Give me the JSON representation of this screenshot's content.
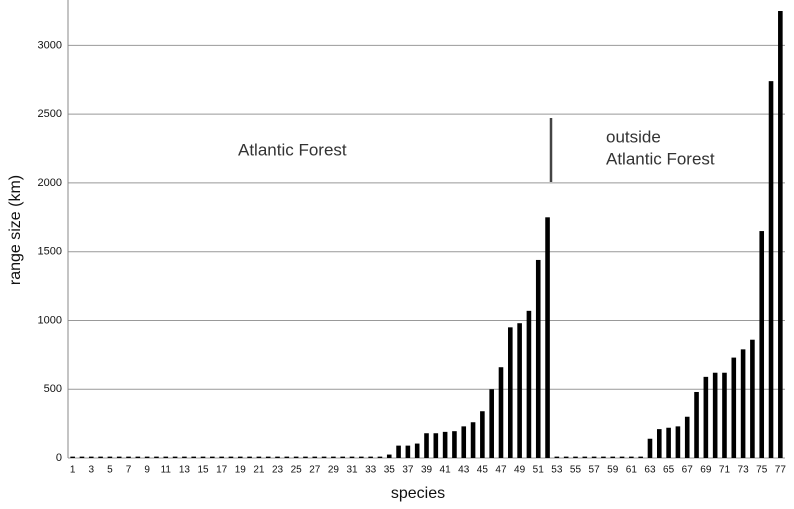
{
  "chart_data": {
    "type": "bar",
    "x_label": "species",
    "y_label": "range size (km)",
    "annotations": [
      {
        "text": "Atlantic Forest"
      },
      {
        "lines": [
          "outside",
          "Atlantic Forest"
        ]
      }
    ],
    "categories": [
      1,
      null,
      3,
      null,
      5,
      null,
      7,
      null,
      9,
      null,
      11,
      null,
      13,
      null,
      15,
      null,
      17,
      null,
      19,
      null,
      21,
      null,
      23,
      null,
      25,
      null,
      27,
      null,
      29,
      null,
      31,
      null,
      33,
      null,
      35,
      null,
      37,
      null,
      39,
      null,
      41,
      null,
      43,
      null,
      45,
      null,
      47,
      null,
      49,
      null,
      51,
      null,
      53,
      null,
      55,
      null,
      57,
      null,
      59,
      null,
      61,
      null,
      63,
      null,
      65,
      null,
      67,
      null,
      69,
      null,
      71,
      null,
      73,
      null,
      75,
      null,
      77
    ],
    "values": [
      10,
      10,
      10,
      10,
      10,
      10,
      10,
      10,
      10,
      10,
      10,
      10,
      10,
      10,
      10,
      10,
      10,
      10,
      10,
      10,
      10,
      10,
      10,
      10,
      10,
      10,
      10,
      10,
      10,
      10,
      10,
      10,
      10,
      10,
      25,
      90,
      90,
      105,
      180,
      180,
      190,
      195,
      230,
      260,
      340,
      500,
      660,
      950,
      980,
      1070,
      1440,
      1750,
      10,
      10,
      10,
      10,
      10,
      10,
      10,
      10,
      10,
      10,
      140,
      210,
      220,
      230,
      300,
      480,
      590,
      620,
      620,
      730,
      790,
      860,
      1650,
      2740,
      3250
    ],
    "color": "#000000",
    "ylim": [
      0,
      3330
    ],
    "yticks": [
      0,
      500,
      1000,
      1500,
      2000,
      2500,
      3000
    ],
    "grid": true
  }
}
